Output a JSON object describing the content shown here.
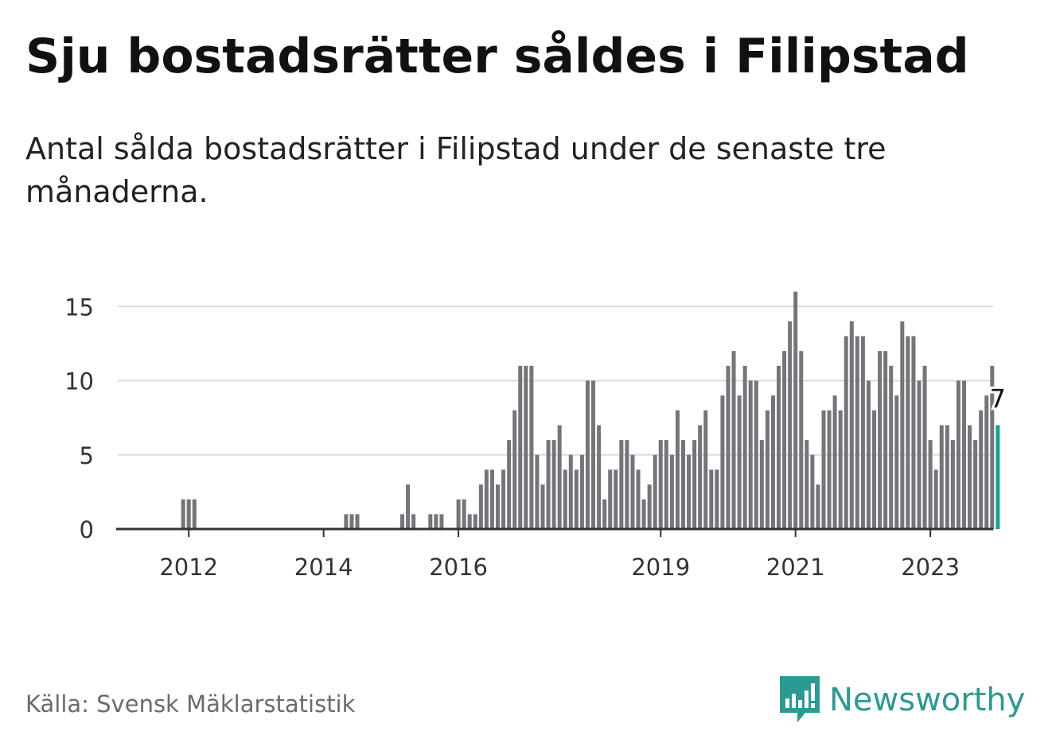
{
  "title": "Sju bostadsrätter såldes i Filipstad",
  "subtitle": "Antal sålda bostadsrätter i Filipstad under de senaste tre månaderna.",
  "source": "Källa: Svensk Mäklarstatistik",
  "brand": {
    "name": "Newsworthy",
    "icon": "newsworthy-logo-icon",
    "color": "#2a9a93"
  },
  "colors": {
    "bar": "#75747a",
    "highlight": "#1a9e96",
    "grid": "#dcdcdc",
    "axis": "#333333"
  },
  "chart_data": {
    "type": "bar",
    "x_ticks": [
      "2012",
      "2014",
      "2016",
      "2019",
      "2021",
      "2023"
    ],
    "y_ticks": [
      0,
      5,
      10,
      15
    ],
    "ylim": [
      0,
      16
    ],
    "grid": true,
    "highlight_label": "7",
    "values": [
      0,
      0,
      0,
      0,
      0,
      0,
      0,
      0,
      0,
      0,
      0,
      2,
      2,
      2,
      0,
      0,
      0,
      0,
      0,
      0,
      0,
      0,
      0,
      0,
      0,
      0,
      0,
      0,
      0,
      0,
      0,
      0,
      0,
      0,
      0,
      0,
      0,
      0,
      0,
      0,
      1,
      1,
      1,
      0,
      0,
      0,
      0,
      0,
      0,
      0,
      1,
      3,
      1,
      0,
      0,
      1,
      1,
      1,
      0,
      0,
      2,
      2,
      1,
      1,
      3,
      4,
      4,
      3,
      4,
      6,
      8,
      11,
      11,
      11,
      5,
      3,
      6,
      6,
      7,
      4,
      5,
      4,
      5,
      10,
      10,
      7,
      2,
      4,
      4,
      6,
      6,
      5,
      4,
      2,
      3,
      5,
      6,
      6,
      5,
      8,
      6,
      5,
      6,
      7,
      8,
      4,
      4,
      9,
      11,
      12,
      9,
      11,
      10,
      10,
      6,
      8,
      9,
      11,
      12,
      14,
      16,
      12,
      6,
      5,
      3,
      8,
      8,
      9,
      8,
      13,
      14,
      13,
      13,
      10,
      8,
      12,
      12,
      11,
      9,
      14,
      13,
      13,
      10,
      11,
      6,
      4,
      7,
      7,
      6,
      10,
      10,
      7,
      6,
      8,
      9,
      11,
      7
    ]
  }
}
